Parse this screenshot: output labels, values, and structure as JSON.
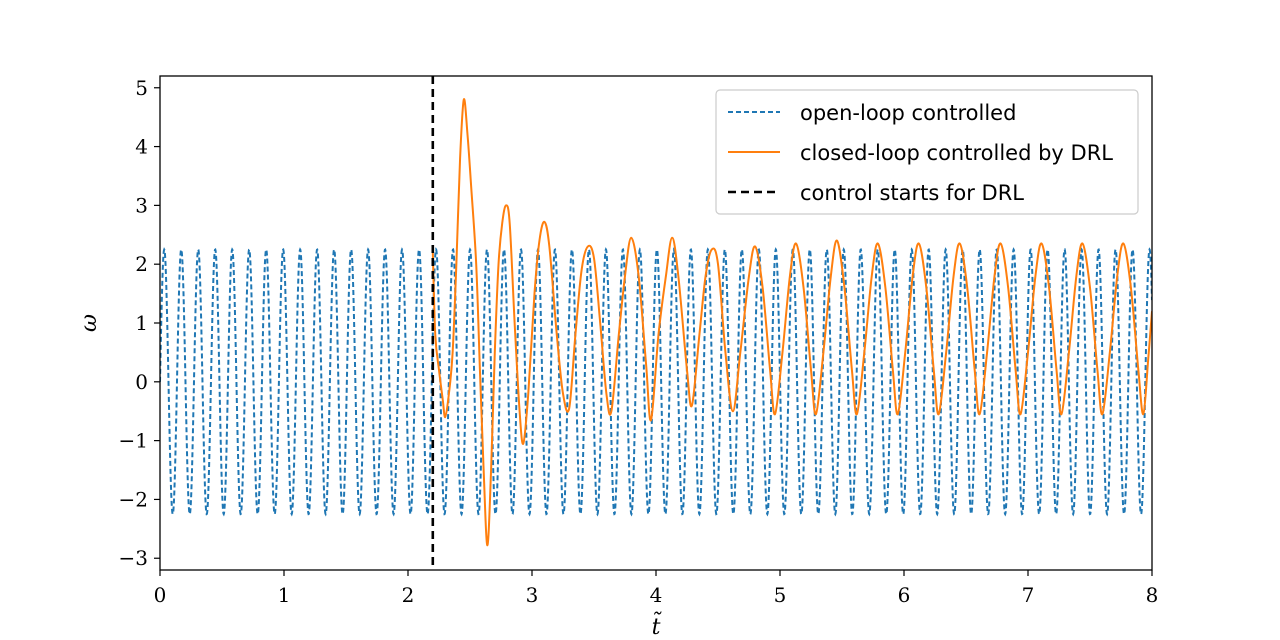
{
  "chart_data": {
    "type": "line",
    "xlabel": "t̃",
    "ylabel": "ω",
    "xlim": [
      0,
      8
    ],
    "ylim": [
      -3.2,
      5.2
    ],
    "xticks": [
      0,
      1,
      2,
      3,
      4,
      5,
      6,
      7,
      8
    ],
    "yticks": [
      -3,
      -2,
      -1,
      0,
      1,
      2,
      3,
      4,
      5
    ],
    "xtick_labels": [
      "0",
      "1",
      "2",
      "3",
      "4",
      "5",
      "6",
      "7",
      "8"
    ],
    "ytick_labels": [
      "−3",
      "−2",
      "−1",
      "0",
      "1",
      "2",
      "3",
      "4",
      "5"
    ],
    "grid": false,
    "legend_position": "top-right",
    "legend": [
      {
        "label": "open-loop controlled",
        "color": "#1f77b4",
        "style": "dashed"
      },
      {
        "label": "closed-loop controlled by DRL",
        "color": "#ff7f0e",
        "style": "solid"
      },
      {
        "label": "control starts for DRL",
        "color": "#000000",
        "style": "dashed"
      }
    ],
    "series": [
      {
        "name": "open-loop controlled",
        "color": "#1f77b4",
        "style": "dashed",
        "oscillation": {
          "amplitude": 2.25,
          "period": 0.137,
          "t_start": 0,
          "t_end": 8
        }
      },
      {
        "name": "closed-loop controlled by DRL",
        "color": "#ff7f0e",
        "style": "solid",
        "points": [
          [
            2.2,
            2.2
          ],
          [
            2.22,
            0.8
          ],
          [
            2.25,
            0.2
          ],
          [
            2.28,
            -0.3
          ],
          [
            2.3,
            -0.6
          ],
          [
            2.33,
            -0.2
          ],
          [
            2.36,
            0.5
          ],
          [
            2.39,
            2.0
          ],
          [
            2.42,
            3.8
          ],
          [
            2.45,
            4.8
          ],
          [
            2.48,
            4.2
          ],
          [
            2.51,
            3.3
          ],
          [
            2.55,
            2.0
          ],
          [
            2.58,
            0.2
          ],
          [
            2.61,
            -1.5
          ],
          [
            2.64,
            -2.78
          ],
          [
            2.67,
            -1.5
          ],
          [
            2.7,
            0.5
          ],
          [
            2.73,
            2.0
          ],
          [
            2.76,
            2.7
          ],
          [
            2.79,
            3.0
          ],
          [
            2.82,
            2.7
          ],
          [
            2.86,
            1.0
          ],
          [
            2.9,
            -0.5
          ],
          [
            2.93,
            -1.05
          ],
          [
            2.97,
            -0.2
          ],
          [
            3.02,
            1.5
          ],
          [
            3.06,
            2.4
          ],
          [
            3.1,
            2.72
          ],
          [
            3.14,
            2.3
          ],
          [
            3.2,
            0.8
          ],
          [
            3.25,
            -0.2
          ],
          [
            3.3,
            -0.45
          ],
          [
            3.35,
            0.8
          ],
          [
            3.4,
            1.9
          ],
          [
            3.45,
            2.3
          ],
          [
            3.5,
            2.1
          ],
          [
            3.55,
            1.0
          ],
          [
            3.6,
            -0.2
          ],
          [
            3.64,
            -0.5
          ],
          [
            3.7,
            0.8
          ],
          [
            3.75,
            1.8
          ],
          [
            3.8,
            2.45
          ],
          [
            3.86,
            1.8
          ],
          [
            3.92,
            0.3
          ],
          [
            3.96,
            -0.65
          ],
          [
            4.02,
            0.8
          ],
          [
            4.08,
            1.8
          ],
          [
            4.13,
            2.45
          ],
          [
            4.18,
            1.8
          ],
          [
            4.25,
            0.2
          ],
          [
            4.29,
            -0.4
          ],
          [
            4.35,
            0.8
          ],
          [
            4.4,
            1.8
          ],
          [
            4.45,
            2.25
          ],
          [
            4.5,
            2.0
          ],
          [
            4.56,
            0.5
          ],
          [
            4.62,
            -0.5
          ],
          [
            4.68,
            0.5
          ],
          [
            4.75,
            1.8
          ],
          [
            4.8,
            2.3
          ],
          [
            4.86,
            1.6
          ],
          [
            4.92,
            0.2
          ],
          [
            4.96,
            -0.55
          ],
          [
            5.02,
            0.5
          ],
          [
            5.08,
            1.8
          ],
          [
            5.13,
            2.35
          ],
          [
            5.19,
            1.6
          ],
          [
            5.25,
            0.2
          ],
          [
            5.29,
            -0.55
          ],
          [
            5.35,
            0.5
          ],
          [
            5.41,
            1.8
          ],
          [
            5.46,
            2.4
          ],
          [
            5.52,
            1.6
          ],
          [
            5.58,
            0.2
          ],
          [
            5.62,
            -0.55
          ],
          [
            5.68,
            0.5
          ],
          [
            5.74,
            1.8
          ],
          [
            5.79,
            2.35
          ],
          [
            5.85,
            1.6
          ],
          [
            5.91,
            0.2
          ],
          [
            5.95,
            -0.55
          ],
          [
            6.01,
            0.5
          ],
          [
            6.07,
            1.8
          ],
          [
            6.12,
            2.35
          ],
          [
            6.18,
            1.6
          ],
          [
            6.24,
            0.2
          ],
          [
            6.28,
            -0.55
          ],
          [
            6.34,
            0.5
          ],
          [
            6.4,
            1.8
          ],
          [
            6.45,
            2.35
          ],
          [
            6.51,
            1.6
          ],
          [
            6.57,
            0.2
          ],
          [
            6.61,
            -0.55
          ],
          [
            6.67,
            0.5
          ],
          [
            6.73,
            1.8
          ],
          [
            6.78,
            2.35
          ],
          [
            6.84,
            1.6
          ],
          [
            6.9,
            0.2
          ],
          [
            6.94,
            -0.55
          ],
          [
            7.0,
            0.5
          ],
          [
            7.06,
            1.8
          ],
          [
            7.11,
            2.35
          ],
          [
            7.17,
            1.6
          ],
          [
            7.23,
            0.2
          ],
          [
            7.27,
            -0.55
          ],
          [
            7.33,
            0.5
          ],
          [
            7.39,
            1.8
          ],
          [
            7.44,
            2.35
          ],
          [
            7.5,
            1.6
          ],
          [
            7.56,
            0.2
          ],
          [
            7.6,
            -0.55
          ],
          [
            7.66,
            0.5
          ],
          [
            7.72,
            1.8
          ],
          [
            7.77,
            2.35
          ],
          [
            7.83,
            1.6
          ],
          [
            7.89,
            0.2
          ],
          [
            7.93,
            -0.55
          ],
          [
            7.97,
            0.4
          ],
          [
            8.0,
            1.2
          ]
        ]
      }
    ],
    "vline": {
      "x": 2.2,
      "color": "#000000",
      "style": "dashed"
    }
  }
}
